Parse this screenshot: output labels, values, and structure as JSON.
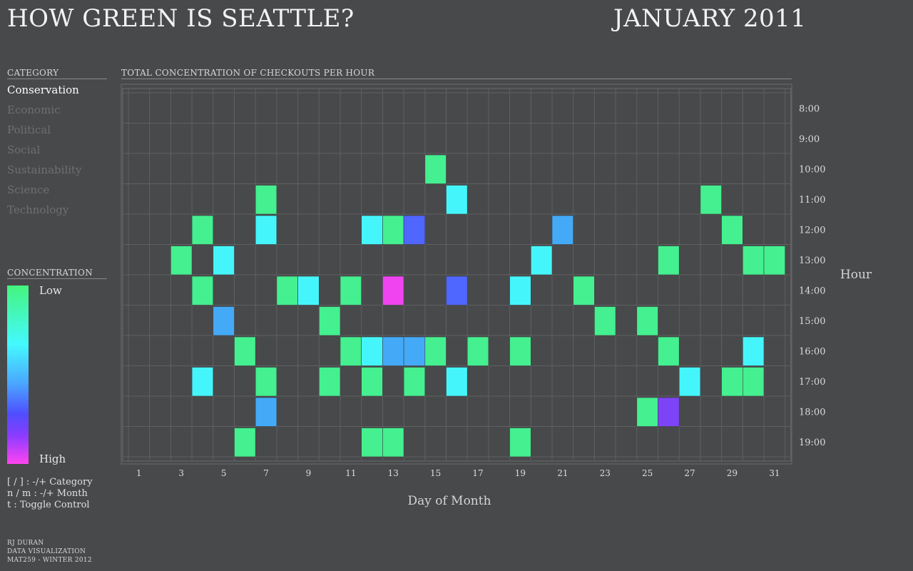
{
  "header": {
    "title": "HOW GREEN IS SEATTLE?",
    "month": "JANUARY 2011"
  },
  "sidebar": {
    "category_heading": "CATEGORY",
    "categories": [
      "Conservation",
      "Economic",
      "Political",
      "Social",
      "Sustainability",
      "Science",
      "Technology"
    ],
    "active_category": "Conservation",
    "concentration_heading": "CONCENTRATION",
    "legend_low": "Low",
    "legend_high": "High",
    "help_lines": [
      "[ / ] : -/+ Category",
      "n / m : -/+ Month",
      "t : Toggle Control"
    ],
    "credits": [
      "RJ DURAN",
      "DATA VISUALIZATION",
      "MAT259 - WINTER 2012"
    ]
  },
  "colors": {
    "background": "#48494b",
    "level_1": "#44f08f",
    "level_2": "#44f6fb",
    "level_3": "#44aaf8",
    "level_4": "#4f66ff",
    "level_5": "#7d44f7",
    "level_6": "#f044f0",
    "grid": "#5f6062"
  },
  "chart_data": {
    "type": "heatmap",
    "title": "TOTAL CONCENTRATION OF CHECKOUTS PER HOUR",
    "xlabel": "Day of Month",
    "ylabel": "Hour",
    "x_ticks": [
      "1",
      "3",
      "5",
      "7",
      "9",
      "11",
      "13",
      "15",
      "17",
      "19",
      "21",
      "23",
      "25",
      "27",
      "29",
      "31"
    ],
    "x_range": [
      1,
      31
    ],
    "hours": [
      "8:00",
      "9:00",
      "10:00",
      "11:00",
      "12:00",
      "13:00",
      "14:00",
      "15:00",
      "16:00",
      "17:00",
      "18:00",
      "19:00"
    ],
    "value_scale": "1 = Low … 6 = High",
    "cells": [
      {
        "day": 15,
        "hour": "10:00",
        "level": 1
      },
      {
        "day": 7,
        "hour": "11:00",
        "level": 1
      },
      {
        "day": 16,
        "hour": "11:00",
        "level": 2
      },
      {
        "day": 28,
        "hour": "11:00",
        "level": 1
      },
      {
        "day": 4,
        "hour": "12:00",
        "level": 1
      },
      {
        "day": 7,
        "hour": "12:00",
        "level": 2
      },
      {
        "day": 12,
        "hour": "12:00",
        "level": 2
      },
      {
        "day": 13,
        "hour": "12:00",
        "level": 1
      },
      {
        "day": 14,
        "hour": "12:00",
        "level": 4
      },
      {
        "day": 21,
        "hour": "12:00",
        "level": 3
      },
      {
        "day": 29,
        "hour": "12:00",
        "level": 1
      },
      {
        "day": 3,
        "hour": "13:00",
        "level": 1
      },
      {
        "day": 5,
        "hour": "13:00",
        "level": 2
      },
      {
        "day": 20,
        "hour": "13:00",
        "level": 2
      },
      {
        "day": 26,
        "hour": "13:00",
        "level": 1
      },
      {
        "day": 30,
        "hour": "13:00",
        "level": 1
      },
      {
        "day": 31,
        "hour": "13:00",
        "level": 1
      },
      {
        "day": 4,
        "hour": "14:00",
        "level": 1
      },
      {
        "day": 8,
        "hour": "14:00",
        "level": 1
      },
      {
        "day": 9,
        "hour": "14:00",
        "level": 2
      },
      {
        "day": 11,
        "hour": "14:00",
        "level": 1
      },
      {
        "day": 13,
        "hour": "14:00",
        "level": 6
      },
      {
        "day": 16,
        "hour": "14:00",
        "level": 4
      },
      {
        "day": 19,
        "hour": "14:00",
        "level": 2
      },
      {
        "day": 22,
        "hour": "14:00",
        "level": 1
      },
      {
        "day": 5,
        "hour": "15:00",
        "level": 3
      },
      {
        "day": 10,
        "hour": "15:00",
        "level": 1
      },
      {
        "day": 23,
        "hour": "15:00",
        "level": 1
      },
      {
        "day": 25,
        "hour": "15:00",
        "level": 1
      },
      {
        "day": 6,
        "hour": "16:00",
        "level": 1
      },
      {
        "day": 11,
        "hour": "16:00",
        "level": 1
      },
      {
        "day": 12,
        "hour": "16:00",
        "level": 2
      },
      {
        "day": 13,
        "hour": "16:00",
        "level": 3
      },
      {
        "day": 14,
        "hour": "16:00",
        "level": 3
      },
      {
        "day": 15,
        "hour": "16:00",
        "level": 1
      },
      {
        "day": 17,
        "hour": "16:00",
        "level": 1
      },
      {
        "day": 19,
        "hour": "16:00",
        "level": 1
      },
      {
        "day": 26,
        "hour": "16:00",
        "level": 1
      },
      {
        "day": 30,
        "hour": "16:00",
        "level": 2
      },
      {
        "day": 4,
        "hour": "17:00",
        "level": 2
      },
      {
        "day": 7,
        "hour": "17:00",
        "level": 1
      },
      {
        "day": 10,
        "hour": "17:00",
        "level": 1
      },
      {
        "day": 12,
        "hour": "17:00",
        "level": 1
      },
      {
        "day": 14,
        "hour": "17:00",
        "level": 1
      },
      {
        "day": 16,
        "hour": "17:00",
        "level": 2
      },
      {
        "day": 27,
        "hour": "17:00",
        "level": 2
      },
      {
        "day": 29,
        "hour": "17:00",
        "level": 1
      },
      {
        "day": 30,
        "hour": "17:00",
        "level": 1
      },
      {
        "day": 7,
        "hour": "18:00",
        "level": 3
      },
      {
        "day": 25,
        "hour": "18:00",
        "level": 1
      },
      {
        "day": 26,
        "hour": "18:00",
        "level": 5
      },
      {
        "day": 6,
        "hour": "19:00",
        "level": 1
      },
      {
        "day": 12,
        "hour": "19:00",
        "level": 1
      },
      {
        "day": 13,
        "hour": "19:00",
        "level": 1
      },
      {
        "day": 19,
        "hour": "19:00",
        "level": 1
      }
    ]
  }
}
